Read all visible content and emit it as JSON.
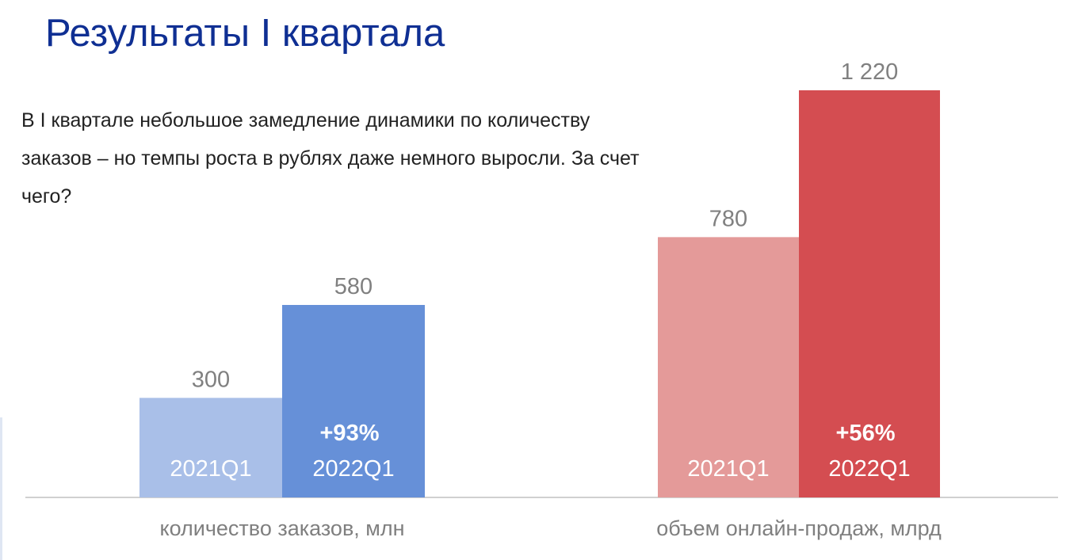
{
  "slide": {
    "title": "Результаты I квартала",
    "intro": "В I квартале небольшое замедление динамики по количеству заказов – но темпы роста в рублях даже немного выросли. За счет чего?"
  },
  "chart_data": [
    {
      "type": "bar",
      "title": "",
      "xlabel": "количество заказов, млн",
      "ylabel": "",
      "categories": [
        "2021Q1",
        "2022Q1"
      ],
      "values": [
        300,
        580
      ],
      "value_labels": [
        "300",
        "580"
      ],
      "growth_label": "+93%",
      "colors": [
        "#a9bfe8",
        "#6690d8"
      ],
      "grid": false,
      "legend": "none"
    },
    {
      "type": "bar",
      "title": "",
      "xlabel": "объем онлайн-продаж, млрд",
      "ylabel": "",
      "categories": [
        "2021Q1",
        "2022Q1"
      ],
      "values": [
        780,
        1220
      ],
      "value_labels": [
        "780",
        "1 220"
      ],
      "growth_label": "+56%",
      "colors": [
        "#e49a99",
        "#d44d51"
      ],
      "grid": false,
      "legend": "none"
    }
  ],
  "style": {
    "title_color": "#0f2f93",
    "axis_color": "#d0d0d0",
    "value_label_color": "#808080",
    "inner_label_color": "#ffffff",
    "category_label_color": "#7f7f7f"
  }
}
